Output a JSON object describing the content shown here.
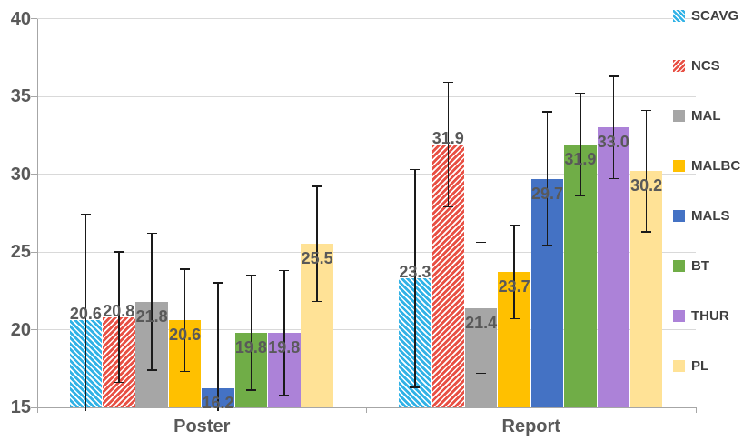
{
  "chart_data": {
    "type": "bar",
    "title": "",
    "categories": [
      "Poster",
      "Report"
    ],
    "series": [
      {
        "name": "SCAVG",
        "color": "#31B2E6",
        "pattern": "diagonal-down",
        "label_position": "above",
        "values": [
          20.6,
          23.3
        ],
        "errors": [
          6.8,
          7.0
        ],
        "labels": [
          "20.6",
          "23.3"
        ]
      },
      {
        "name": "NCS",
        "color": "#E85044",
        "pattern": "diagonal-up",
        "label_position": "above",
        "values": [
          20.8,
          31.9
        ],
        "errors": [
          4.2,
          4.0
        ],
        "labels": [
          "20.8",
          "31.9"
        ]
      },
      {
        "name": "MAL",
        "color": "#A6A6A6",
        "pattern": "solid",
        "label_position": "inside",
        "values": [
          21.8,
          21.4
        ],
        "errors": [
          4.4,
          4.2
        ],
        "labels": [
          "21.8",
          "21.4"
        ]
      },
      {
        "name": "MALBC",
        "color": "#FFC000",
        "pattern": "solid",
        "label_position": "inside",
        "values": [
          20.6,
          23.7
        ],
        "errors": [
          3.3,
          3.0
        ],
        "labels": [
          "20.6",
          "23.7"
        ]
      },
      {
        "name": "MALS",
        "color": "#4472C4",
        "pattern": "solid",
        "label_position": "inside",
        "values": [
          16.2,
          29.7
        ],
        "errors": [
          6.8,
          4.3
        ],
        "labels": [
          "16.2",
          "29.7"
        ]
      },
      {
        "name": "BT",
        "color": "#70AD47",
        "pattern": "solid",
        "label_position": "inside",
        "values": [
          19.8,
          31.9
        ],
        "errors": [
          3.7,
          3.3
        ],
        "labels": [
          "19.8",
          "31.9"
        ]
      },
      {
        "name": "THUR",
        "color": "#AC82D8",
        "pattern": "solid",
        "label_position": "inside",
        "values": [
          19.8,
          33.0
        ],
        "errors": [
          4.0,
          3.3
        ],
        "labels": [
          "19.8",
          "33.0"
        ]
      },
      {
        "name": "PL",
        "color": "#FFE296",
        "pattern": "solid",
        "label_position": "inside",
        "values": [
          25.5,
          30.2
        ],
        "errors": [
          3.7,
          3.9
        ],
        "labels": [
          "25.5",
          "30.2"
        ]
      }
    ],
    "ylim": [
      15,
      40
    ],
    "y_ticks": [
      "15",
      "20",
      "25",
      "30",
      "35",
      "40"
    ],
    "xlabel": "",
    "ylabel": "",
    "grid": true,
    "error_bars": true,
    "legend_position": "right"
  },
  "colors": {
    "background": "#FFFFFF",
    "gridline": "#D9D9D9",
    "axis": "#A6A6A6",
    "tick_text": "#595959",
    "data_label_text": "#595959",
    "legend_text": "#3F3F3F",
    "error_bar": "#1A1A1A"
  }
}
